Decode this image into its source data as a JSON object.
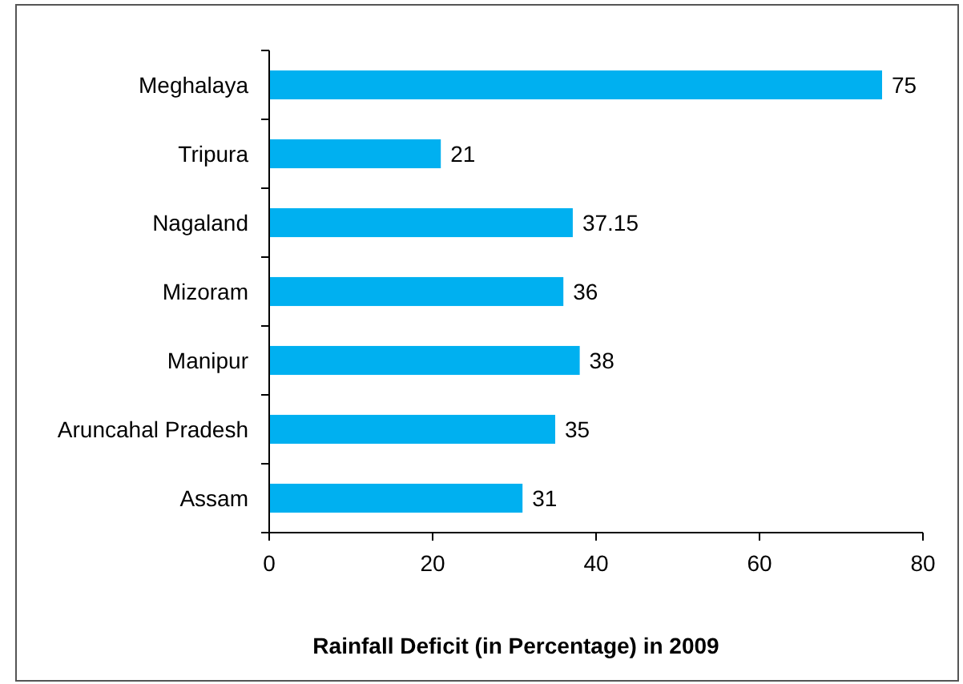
{
  "chart_data": {
    "type": "bar",
    "orientation": "horizontal",
    "xlabel": "Rainfall Deficit (in Percentage) in 2009",
    "categories": [
      "Meghalaya",
      "Tripura",
      "Nagaland",
      "Mizoram",
      "Manipur",
      "Aruncahal Pradesh",
      "Assam"
    ],
    "values": [
      75,
      21,
      37.15,
      36,
      38,
      35,
      31
    ],
    "color": "#00b0f0",
    "xlim": [
      0,
      80
    ],
    "xticks": [
      0,
      20,
      40,
      60,
      80
    ],
    "data_labels": true,
    "grid": false
  }
}
